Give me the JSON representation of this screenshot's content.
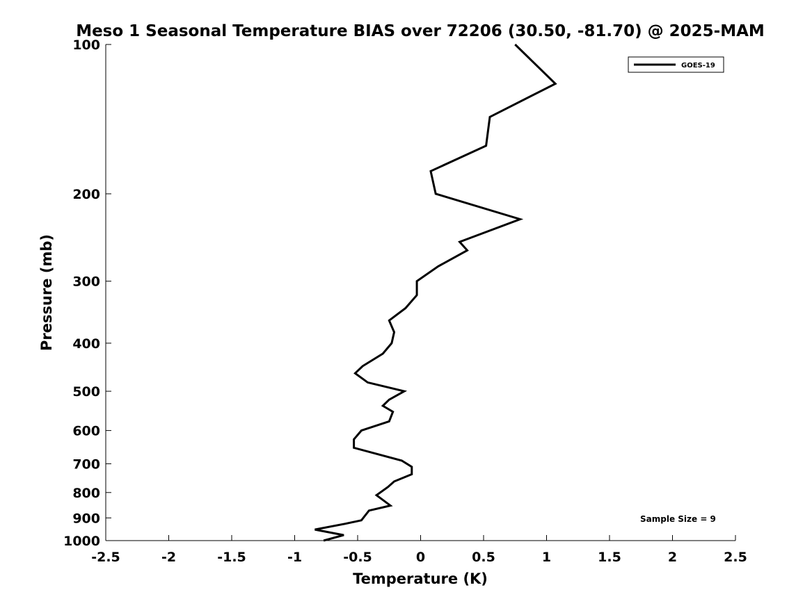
{
  "chart_data": {
    "type": "line",
    "title": "Meso 1 Seasonal Temperature BIAS over 72206 (30.50, -81.70) @ 2025-MAM",
    "xlabel": "Temperature (K)",
    "ylabel": "Pressure (mb)",
    "xlim": [
      -2.5,
      2.5
    ],
    "ylim": [
      1000,
      100
    ],
    "yscale": "log",
    "xticks": [
      "-2.5",
      "-2",
      "-1.5",
      "-1",
      "-0.5",
      "0",
      "0.5",
      "1",
      "1.5",
      "2",
      "2.5"
    ],
    "yticks": [
      "100",
      "200",
      "300",
      "400",
      "500",
      "600",
      "700",
      "800",
      "900",
      "1000"
    ],
    "grid": false,
    "legend": "top-right",
    "annotation": "Sample Size = 9",
    "series": [
      {
        "name": "GOES-19",
        "color": "#000000",
        "points": [
          {
            "x": 0.75,
            "y": 100
          },
          {
            "x": 1.07,
            "y": 120
          },
          {
            "x": 0.55,
            "y": 140
          },
          {
            "x": 0.52,
            "y": 160
          },
          {
            "x": 0.08,
            "y": 180
          },
          {
            "x": 0.12,
            "y": 200
          },
          {
            "x": 0.79,
            "y": 225
          },
          {
            "x": 0.31,
            "y": 250
          },
          {
            "x": 0.37,
            "y": 260
          },
          {
            "x": 0.14,
            "y": 280
          },
          {
            "x": -0.03,
            "y": 300
          },
          {
            "x": -0.03,
            "y": 320
          },
          {
            "x": -0.12,
            "y": 340
          },
          {
            "x": -0.25,
            "y": 360
          },
          {
            "x": -0.21,
            "y": 380
          },
          {
            "x": -0.23,
            "y": 400
          },
          {
            "x": -0.3,
            "y": 420
          },
          {
            "x": -0.46,
            "y": 445
          },
          {
            "x": -0.52,
            "y": 460
          },
          {
            "x": -0.42,
            "y": 480
          },
          {
            "x": -0.13,
            "y": 500
          },
          {
            "x": -0.25,
            "y": 520
          },
          {
            "x": -0.3,
            "y": 535
          },
          {
            "x": -0.22,
            "y": 550
          },
          {
            "x": -0.25,
            "y": 575
          },
          {
            "x": -0.47,
            "y": 600
          },
          {
            "x": -0.53,
            "y": 625
          },
          {
            "x": -0.53,
            "y": 650
          },
          {
            "x": -0.15,
            "y": 690
          },
          {
            "x": -0.07,
            "y": 710
          },
          {
            "x": -0.07,
            "y": 735
          },
          {
            "x": -0.21,
            "y": 760
          },
          {
            "x": -0.26,
            "y": 780
          },
          {
            "x": -0.35,
            "y": 810
          },
          {
            "x": -0.24,
            "y": 850
          },
          {
            "x": -0.41,
            "y": 870
          },
          {
            "x": -0.47,
            "y": 910
          },
          {
            "x": -0.6,
            "y": 925
          },
          {
            "x": -0.84,
            "y": 950
          },
          {
            "x": -0.61,
            "y": 975
          },
          {
            "x": -0.77,
            "y": 1000
          }
        ]
      }
    ]
  }
}
